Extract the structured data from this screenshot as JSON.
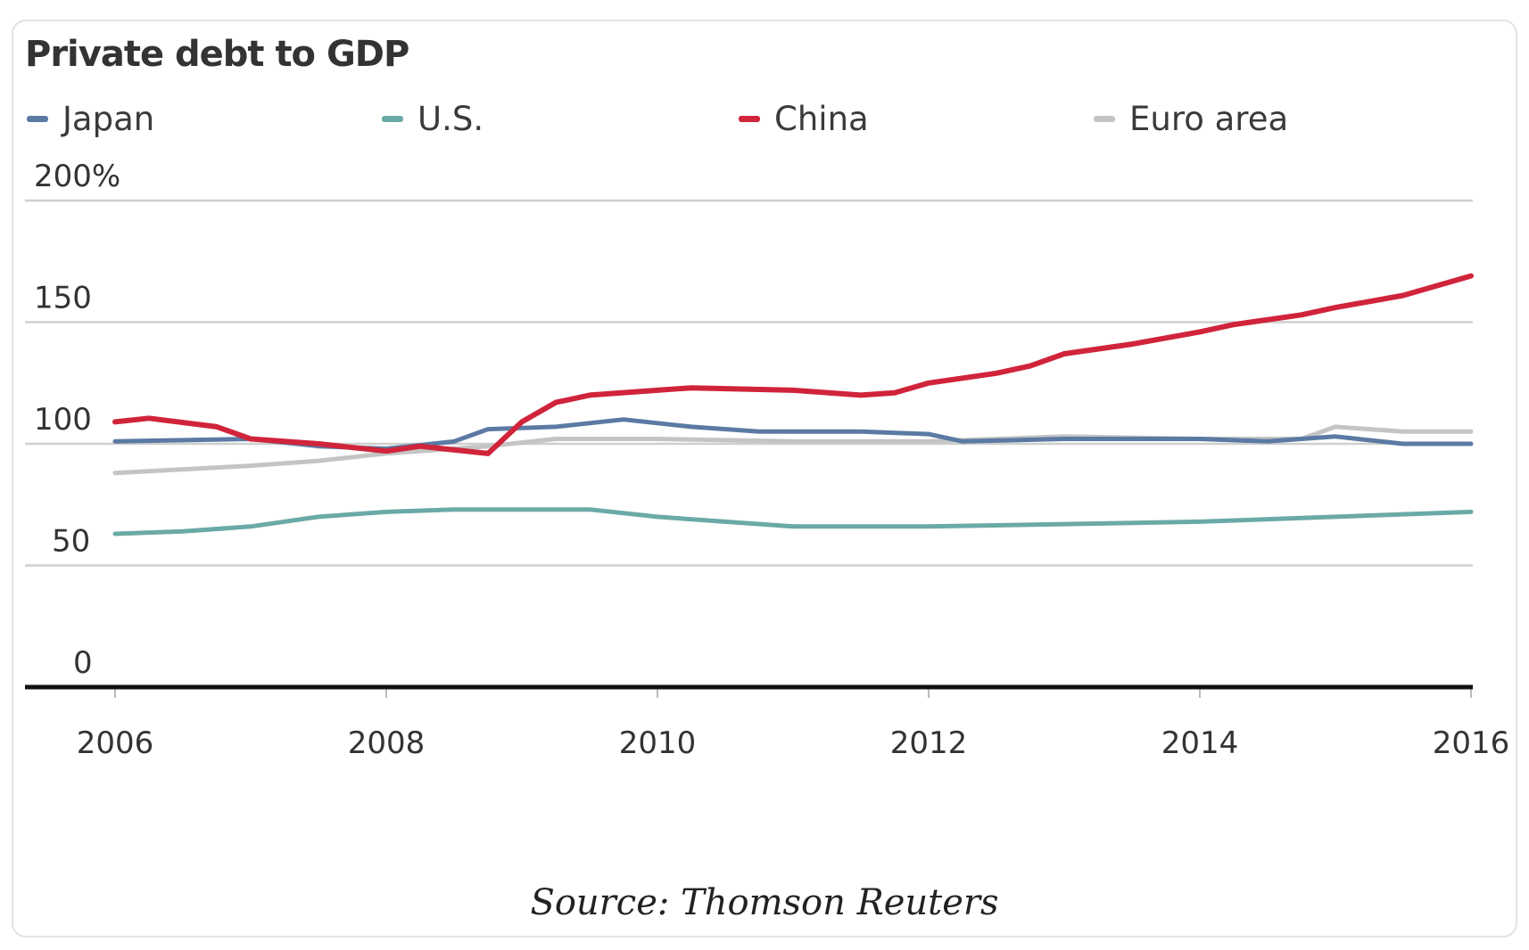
{
  "chart_data": {
    "type": "line",
    "title": "Private debt to GDP",
    "xlabel": "",
    "ylabel": "",
    "ylim": [
      0,
      200
    ],
    "xlim": [
      2006,
      2016
    ],
    "y_ticks": [
      {
        "value": 200,
        "label": "200%"
      },
      {
        "value": 150,
        "label": "150"
      },
      {
        "value": 100,
        "label": "100"
      },
      {
        "value": 50,
        "label": "50"
      },
      {
        "value": 0,
        "label": "0"
      }
    ],
    "x_ticks": [
      {
        "value": 2006,
        "label": "2006"
      },
      {
        "value": 2008,
        "label": "2008"
      },
      {
        "value": 2010,
        "label": "2010"
      },
      {
        "value": 2012,
        "label": "2012"
      },
      {
        "value": 2014,
        "label": "2014"
      },
      {
        "value": 2016,
        "label": "2016"
      }
    ],
    "grid": true,
    "legend_position": "top",
    "series": [
      {
        "name": "Japan",
        "color": "#5b7aa3",
        "x": [
          2006,
          2007,
          2007.5,
          2008,
          2008.5,
          2008.75,
          2009.25,
          2009.75,
          2010.25,
          2010.75,
          2011.5,
          2012,
          2012.25,
          2013,
          2014,
          2014.5,
          2015,
          2015.5,
          2016
        ],
        "y": [
          101,
          102,
          99,
          98,
          101,
          106,
          107,
          110,
          107,
          105,
          105,
          104,
          101,
          102,
          102,
          101,
          103,
          100,
          100
        ]
      },
      {
        "name": "U.S.",
        "color": "#6aaaa6",
        "x": [
          2006,
          2006.5,
          2007,
          2007.5,
          2008,
          2008.5,
          2009,
          2009.5,
          2010,
          2010.5,
          2011,
          2012,
          2013,
          2014,
          2015,
          2016
        ],
        "y": [
          63,
          64,
          66,
          70,
          72,
          73,
          73,
          73,
          70,
          68,
          66,
          66,
          67,
          68,
          70,
          72
        ]
      },
      {
        "name": "China",
        "color": "#d0243b",
        "x": [
          2006,
          2006.25,
          2006.75,
          2007,
          2007.5,
          2008,
          2008.25,
          2008.75,
          2009,
          2009.25,
          2009.5,
          2010,
          2010.25,
          2011,
          2011.5,
          2011.75,
          2012,
          2012.5,
          2012.75,
          2013,
          2013.5,
          2014,
          2014.25,
          2014.75,
          2015,
          2015.5,
          2016
        ],
        "y": [
          109,
          110.5,
          107,
          102,
          100,
          97,
          99,
          96,
          109,
          117,
          120,
          122,
          123,
          122,
          120,
          121,
          125,
          129,
          132,
          137,
          141,
          146,
          149,
          153,
          156,
          161,
          169
        ]
      },
      {
        "name": "Euro area",
        "color": "#c4c4c4",
        "x": [
          2006,
          2007,
          2007.5,
          2008,
          2008.75,
          2009.25,
          2010,
          2011,
          2012,
          2013,
          2014,
          2014.75,
          2015,
          2015.5,
          2016
        ],
        "y": [
          88,
          91,
          93,
          96,
          99,
          102,
          102,
          101,
          101,
          103,
          102,
          102,
          107,
          105,
          105
        ]
      }
    ],
    "source": "Source: Thomson Reuters"
  },
  "legend": [
    {
      "label": "Japan",
      "color": "#5b7aa3"
    },
    {
      "label": "U.S.",
      "color": "#6aaaa6"
    },
    {
      "label": "China",
      "color": "#d0243b"
    },
    {
      "label": "Euro area",
      "color": "#c4c4c4"
    }
  ]
}
